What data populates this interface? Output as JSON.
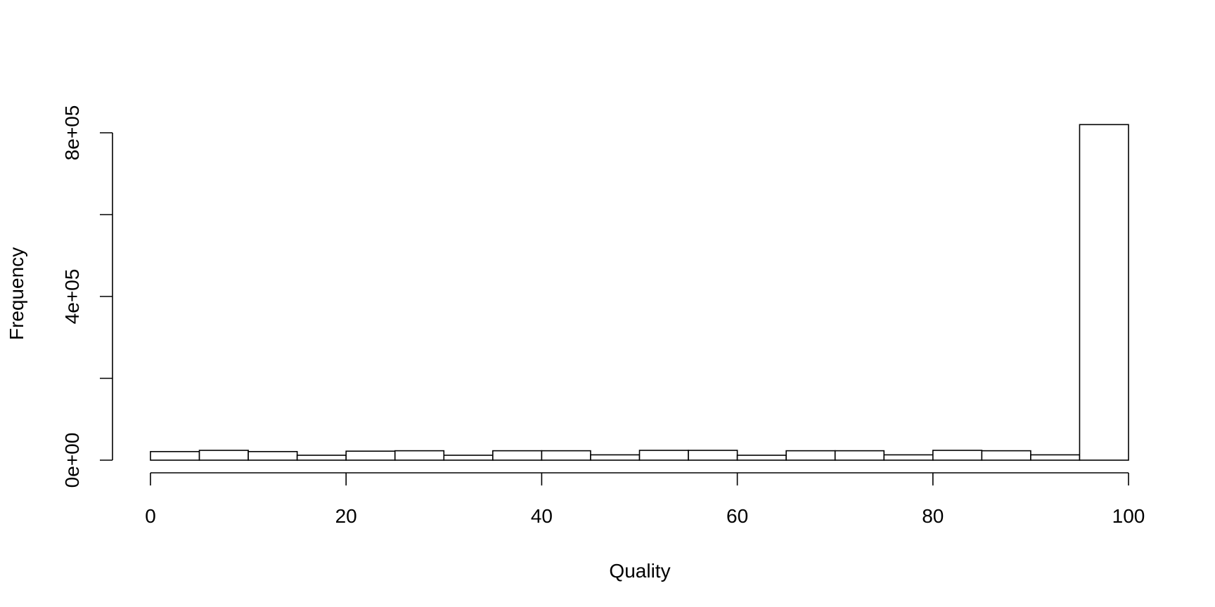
{
  "chart_data": {
    "type": "bar",
    "title": "",
    "xlabel": "Quality",
    "ylabel": "Frequency",
    "xlim": [
      0,
      100
    ],
    "ylim": [
      0,
      800000
    ],
    "x_ticks": [
      0,
      20,
      40,
      60,
      80,
      100
    ],
    "x_tick_labels": [
      "0",
      "20",
      "40",
      "60",
      "80",
      "100"
    ],
    "y_ticks": [
      0,
      200000,
      400000,
      600000,
      800000
    ],
    "y_tick_labels": [
      "0e+00",
      "",
      "4e+05",
      "",
      "8e+05"
    ],
    "grid": false,
    "legend": "none",
    "bins": [
      {
        "from": 0,
        "to": 5,
        "value": 21000
      },
      {
        "from": 5,
        "to": 10,
        "value": 24000
      },
      {
        "from": 10,
        "to": 15,
        "value": 21000
      },
      {
        "from": 15,
        "to": 20,
        "value": 12000
      },
      {
        "from": 20,
        "to": 25,
        "value": 22000
      },
      {
        "from": 25,
        "to": 30,
        "value": 23000
      },
      {
        "from": 30,
        "to": 35,
        "value": 12000
      },
      {
        "from": 35,
        "to": 40,
        "value": 23000
      },
      {
        "from": 40,
        "to": 45,
        "value": 23000
      },
      {
        "from": 45,
        "to": 50,
        "value": 13000
      },
      {
        "from": 50,
        "to": 55,
        "value": 24000
      },
      {
        "from": 55,
        "to": 60,
        "value": 24000
      },
      {
        "from": 60,
        "to": 65,
        "value": 12000
      },
      {
        "from": 65,
        "to": 70,
        "value": 23000
      },
      {
        "from": 70,
        "to": 75,
        "value": 23000
      },
      {
        "from": 75,
        "to": 80,
        "value": 13000
      },
      {
        "from": 80,
        "to": 85,
        "value": 24000
      },
      {
        "from": 85,
        "to": 90,
        "value": 23000
      },
      {
        "from": 90,
        "to": 95,
        "value": 13000
      },
      {
        "from": 95,
        "to": 100,
        "value": 820000
      }
    ]
  }
}
